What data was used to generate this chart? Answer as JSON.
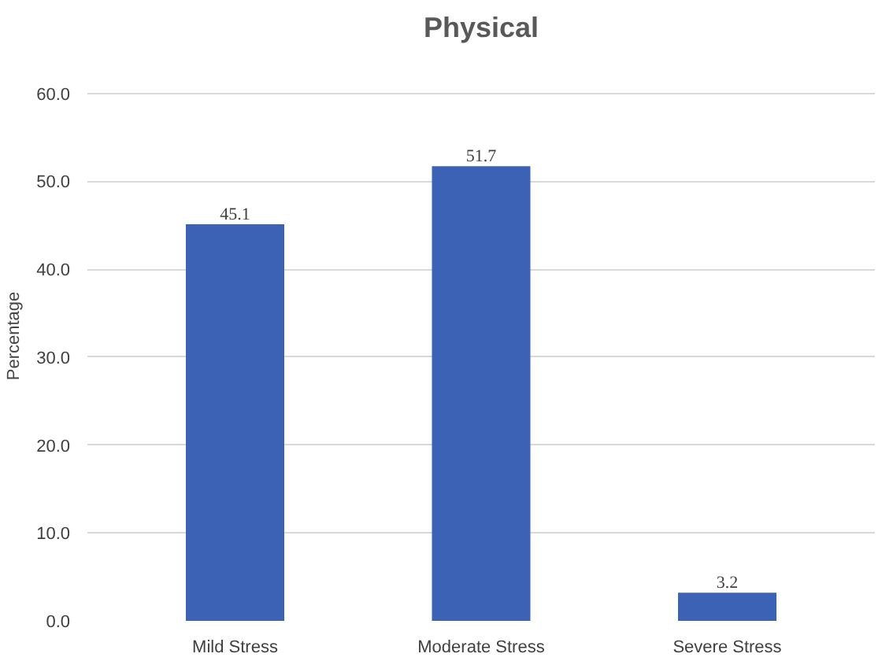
{
  "chart_data": {
    "type": "bar",
    "title": "Physical",
    "ylabel": "Percentage",
    "categories": [
      "Mild Stress",
      "Moderate Stress",
      "Severe Stress"
    ],
    "values": [
      45.1,
      51.7,
      3.2
    ],
    "color": "#3b62b5",
    "ylim": [
      0,
      60
    ],
    "yticks": [
      {
        "value": 0,
        "label": "0.0"
      },
      {
        "value": 10,
        "label": "10.0"
      },
      {
        "value": 20,
        "label": "20.0"
      },
      {
        "value": 30,
        "label": "30.0"
      },
      {
        "value": 40,
        "label": "40.0"
      },
      {
        "value": 50,
        "label": "50.0"
      },
      {
        "value": 60,
        "label": "60.0"
      }
    ],
    "grid": "y",
    "data_labels": true
  }
}
